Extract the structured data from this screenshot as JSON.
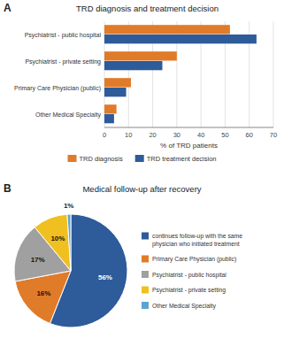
{
  "chart_data": [
    {
      "type": "bar",
      "orientation": "horizontal",
      "title": "TRD diagnosis and treatment decision",
      "annotations": [
        "A"
      ],
      "categories": [
        "Psychiatrist - public hospital",
        "Psychiatrist - private setting",
        "Primary Care Physician (public)",
        "Other Medical Specialty"
      ],
      "series": [
        {
          "name": "TRD diagnosis",
          "color": "#E07B2A",
          "values": [
            52,
            30,
            11,
            5
          ]
        },
        {
          "name": "TRD treatment decision",
          "color": "#2E5B9A",
          "values": [
            63,
            24,
            9,
            4
          ]
        }
      ],
      "x_label": "% of TRD patients",
      "xlim": [
        0,
        70
      ],
      "xticks": [
        0,
        10,
        20,
        30,
        40,
        50,
        60,
        70
      ],
      "grid": true,
      "legend": "bottom"
    },
    {
      "type": "pie",
      "title": "Medical follow-up after recovery",
      "annotations": [
        "B"
      ],
      "categories": [
        "continues follow-up with the same\nphysician who initiated treatment",
        "Primary Care Physician (public)",
        "Psychiatrist - public hospital",
        "Psychiatrist - private setting",
        "Other Medical Specialty"
      ],
      "values": [
        56,
        16,
        17,
        10,
        1
      ],
      "value_labels": [
        "56%",
        "16%",
        "17%",
        "10%",
        "1%"
      ],
      "colors": [
        "#2E5B9A",
        "#E07B2A",
        "#A0A0A0",
        "#F0C020",
        "#5BA4CF"
      ],
      "data_labels": true,
      "legend": "right"
    }
  ]
}
